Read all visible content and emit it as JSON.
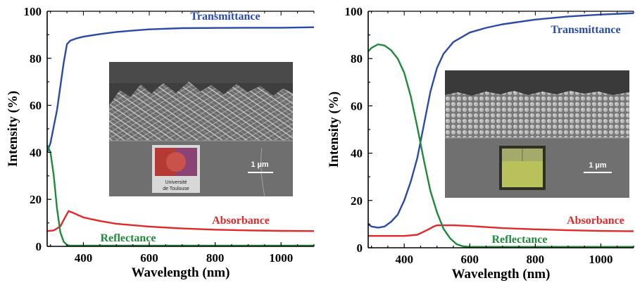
{
  "chart_data": [
    {
      "type": "line",
      "title": "",
      "xlabel": "Wavelength (nm)",
      "ylabel": "Intensity (%)",
      "xlim": [
        290,
        1100
      ],
      "ylim": [
        0,
        100
      ],
      "xticks": [
        400,
        600,
        800,
        1000
      ],
      "yticks": [
        0,
        20,
        40,
        60,
        80,
        100
      ],
      "grid": false,
      "series": [
        {
          "name": "Transmittance",
          "color": "#2b4aa8",
          "x": [
            290,
            300,
            320,
            340,
            350,
            360,
            380,
            400,
            450,
            500,
            550,
            600,
            700,
            800,
            900,
            1000,
            1100
          ],
          "y": [
            40,
            44,
            58,
            78,
            86,
            87.5,
            88.5,
            89.2,
            90.3,
            91.2,
            91.8,
            92.3,
            92.8,
            92.9,
            93,
            93,
            93.2
          ]
        },
        {
          "name": "Absorbance",
          "color": "#e02a2a",
          "x": [
            290,
            310,
            330,
            345,
            355,
            370,
            400,
            450,
            500,
            600,
            700,
            800,
            900,
            1000,
            1100
          ],
          "y": [
            6.5,
            6.8,
            8.5,
            12.5,
            15,
            14.2,
            12.3,
            10.8,
            9.6,
            8.4,
            7.6,
            7.1,
            6.8,
            6.6,
            6.5
          ]
        },
        {
          "name": "Reflectance",
          "color": "#1f8a3a",
          "x": [
            290,
            300,
            310,
            320,
            330,
            340,
            350,
            360,
            400,
            500,
            600,
            800,
            1000,
            1100
          ],
          "y": [
            43,
            40,
            30,
            16,
            6,
            2,
            0.6,
            0.3,
            0.3,
            0.3,
            0.3,
            0.3,
            0.3,
            0.3
          ]
        }
      ],
      "inset": {
        "scale_bar": "1 µm",
        "logo_text": [
          "Université",
          "de Toulouse"
        ]
      }
    },
    {
      "type": "line",
      "title": "",
      "xlabel": "Wavelength (nm)",
      "ylabel": "Intensity (%)",
      "xlim": [
        290,
        1100
      ],
      "ylim": [
        0,
        100
      ],
      "xticks": [
        400,
        600,
        800,
        1000
      ],
      "yticks": [
        0,
        20,
        40,
        60,
        80,
        100
      ],
      "grid": false,
      "series": [
        {
          "name": "Transmittance",
          "color": "#2b4aa8",
          "x": [
            290,
            300,
            320,
            340,
            360,
            380,
            400,
            420,
            440,
            460,
            480,
            500,
            520,
            550,
            600,
            650,
            700,
            800,
            900,
            1000,
            1100
          ],
          "y": [
            10,
            9,
            8.5,
            9,
            11,
            14,
            20,
            28,
            38,
            52,
            66,
            76,
            82,
            87,
            91,
            93,
            94.5,
            96.5,
            97.8,
            98.6,
            99.2
          ]
        },
        {
          "name": "Absorbance",
          "color": "#e02a2a",
          "x": [
            290,
            350,
            400,
            440,
            470,
            490,
            500,
            550,
            600,
            700,
            800,
            900,
            1000,
            1100
          ],
          "y": [
            5,
            5,
            5,
            5.5,
            7.5,
            9,
            9.5,
            9.5,
            9.2,
            8.3,
            7.8,
            7.4,
            7.1,
            7
          ]
        },
        {
          "name": "Reflectance",
          "color": "#1f8a3a",
          "x": [
            290,
            300,
            320,
            340,
            360,
            380,
            400,
            420,
            440,
            460,
            480,
            500,
            520,
            540,
            560,
            580,
            600,
            700,
            800,
            900,
            1000,
            1100
          ],
          "y": [
            83,
            84.5,
            86,
            85.5,
            83.5,
            80,
            74,
            64,
            51,
            37,
            24,
            15,
            8,
            4,
            1.5,
            0.6,
            0.4,
            0.4,
            0.4,
            0.4,
            0.4,
            0.4
          ]
        }
      ],
      "inset": {
        "scale_bar": "1 µm"
      }
    }
  ]
}
